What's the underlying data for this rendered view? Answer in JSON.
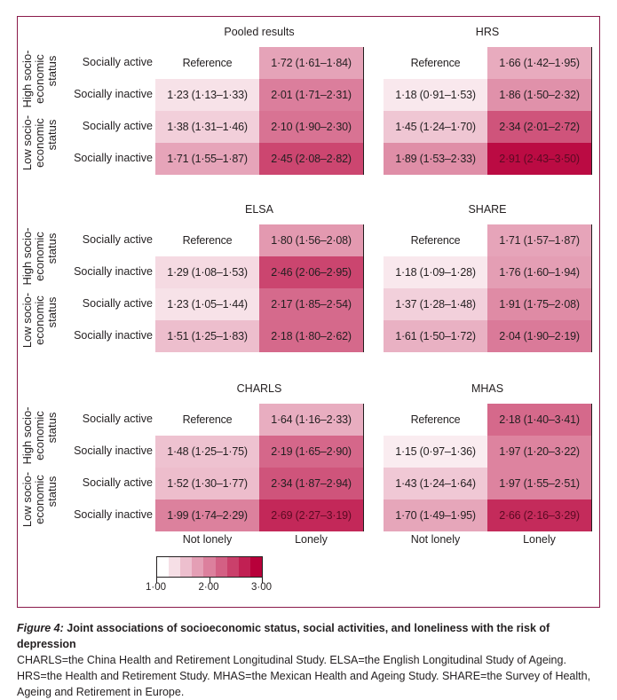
{
  "chart_data": {
    "type": "heatmap",
    "title": "Figure 4: Joint associations of socioeconomic status, social activities, and loneliness with the risk of depression",
    "x_categories": [
      "Not lonely",
      "Lonely"
    ],
    "row_groups": [
      {
        "label": "High socio-economic status",
        "rows": [
          "Socially active",
          "Socially inactive"
        ]
      },
      {
        "label": "Low socio-economic status",
        "rows": [
          "Socially active",
          "Socially inactive"
        ]
      }
    ],
    "row_labels": [
      "Socially active",
      "Socially inactive",
      "Socially active",
      "Socially inactive"
    ],
    "color_scale": {
      "min": 1.0,
      "max": 3.0,
      "ticks": [
        "1·00",
        "2·00",
        "3·00"
      ],
      "low_color": "#ffffff",
      "high_color": "#b8003a"
    },
    "panels": [
      {
        "name": "Pooled results",
        "cells": [
          [
            {
              "value": null,
              "text": "Reference"
            },
            {
              "value": 1.72,
              "text": "1·72 (1·61–1·84)"
            }
          ],
          [
            {
              "value": 1.23,
              "text": "1·23 (1·13–1·33)"
            },
            {
              "value": 2.01,
              "text": "2·01 (1·71–2·31)"
            }
          ],
          [
            {
              "value": 1.38,
              "text": "1·38 (1·31–1·46)"
            },
            {
              "value": 2.1,
              "text": "2·10 (1·90–2·30)"
            }
          ],
          [
            {
              "value": 1.71,
              "text": "1·71 (1·55–1·87)"
            },
            {
              "value": 2.45,
              "text": "2·45 (2·08–2·82)"
            }
          ]
        ]
      },
      {
        "name": "HRS",
        "cells": [
          [
            {
              "value": null,
              "text": "Reference"
            },
            {
              "value": 1.66,
              "text": "1·66 (1·42–1·95)"
            }
          ],
          [
            {
              "value": 1.18,
              "text": "1·18 (0·91–1·53)"
            },
            {
              "value": 1.86,
              "text": "1·86 (1·50–2·32)"
            }
          ],
          [
            {
              "value": 1.45,
              "text": "1·45 (1·24–1·70)"
            },
            {
              "value": 2.34,
              "text": "2·34 (2·01–2·72)"
            }
          ],
          [
            {
              "value": 1.89,
              "text": "1·89 (1·53–2·33)"
            },
            {
              "value": 2.91,
              "text": "2·91 (2·43–3·50)"
            }
          ]
        ]
      },
      {
        "name": "ELSA",
        "cells": [
          [
            {
              "value": null,
              "text": "Reference"
            },
            {
              "value": 1.8,
              "text": "1·80 (1·56–2·08)"
            }
          ],
          [
            {
              "value": 1.29,
              "text": "1·29 (1·08–1·53)"
            },
            {
              "value": 2.46,
              "text": "2·46 (2·06–2·95)"
            }
          ],
          [
            {
              "value": 1.23,
              "text": "1·23 (1·05–1·44)"
            },
            {
              "value": 2.17,
              "text": "2·17 (1·85–2·54)"
            }
          ],
          [
            {
              "value": 1.51,
              "text": "1·51 (1·25–1·83)"
            },
            {
              "value": 2.18,
              "text": "2·18 (1·80–2·62)"
            }
          ]
        ]
      },
      {
        "name": "SHARE",
        "cells": [
          [
            {
              "value": null,
              "text": "Reference"
            },
            {
              "value": 1.71,
              "text": "1·71 (1·57–1·87)"
            }
          ],
          [
            {
              "value": 1.18,
              "text": "1·18 (1·09–1·28)"
            },
            {
              "value": 1.76,
              "text": "1·76 (1·60–1·94)"
            }
          ],
          [
            {
              "value": 1.37,
              "text": "1·37 (1·28–1·48)"
            },
            {
              "value": 1.91,
              "text": "1·91 (1·75–2·08)"
            }
          ],
          [
            {
              "value": 1.61,
              "text": "1·61 (1·50–1·72)"
            },
            {
              "value": 2.04,
              "text": "2·04 (1·90–2·19)"
            }
          ]
        ]
      },
      {
        "name": "CHARLS",
        "cells": [
          [
            {
              "value": null,
              "text": "Reference"
            },
            {
              "value": 1.64,
              "text": "1·64 (1·16–2·33)"
            }
          ],
          [
            {
              "value": 1.48,
              "text": "1·48 (1·25–1·75)"
            },
            {
              "value": 2.19,
              "text": "2·19 (1·65–2·90)"
            }
          ],
          [
            {
              "value": 1.52,
              "text": "1·52 (1·30–1·77)"
            },
            {
              "value": 2.34,
              "text": "2·34 (1·87–2·94)"
            }
          ],
          [
            {
              "value": 1.99,
              "text": "1·99 (1·74–2·29)"
            },
            {
              "value": 2.69,
              "text": "2·69 (2·27–3·19)"
            }
          ]
        ]
      },
      {
        "name": "MHAS",
        "cells": [
          [
            {
              "value": null,
              "text": "Reference"
            },
            {
              "value": 2.18,
              "text": "2·18 (1·40–3·41)"
            }
          ],
          [
            {
              "value": 1.15,
              "text": "1·15 (0·97–1·36)"
            },
            {
              "value": 1.97,
              "text": "1·97 (1·20–3·22)"
            }
          ],
          [
            {
              "value": 1.43,
              "text": "1·43 (1·24–1·64)"
            },
            {
              "value": 1.97,
              "text": "1·97 (1·55–2·51)"
            }
          ],
          [
            {
              "value": 1.7,
              "text": "1·70 (1·49–1·95)"
            },
            {
              "value": 2.66,
              "text": "2·66 (2·16–3·29)"
            }
          ]
        ]
      }
    ]
  },
  "labels": {
    "high_ses_line1": "High socio-",
    "high_ses_line2": "economic",
    "high_ses_line3": "status",
    "low_ses_line1": "Low socio-",
    "low_ses_line2": "economic",
    "low_ses_line3": "status",
    "not_lonely": "Not lonely",
    "lonely": "Lonely"
  },
  "caption": {
    "figure_label": "Figure 4:",
    "title": " Joint associations of socioeconomic status, social activities, and loneliness with the risk of depression",
    "body": "CHARLS=the China Health and Retirement Longitudinal Study. ELSA=the English Longitudinal Study of Ageing. HRS=the Health and Retirement Study. MHAS=the Mexican Health and Ageing Study. SHARE=the Survey of Health, Ageing and Retirement in Europe."
  }
}
